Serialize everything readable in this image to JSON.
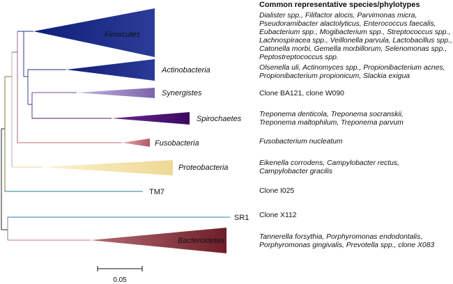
{
  "header": {
    "title": "Common representative species/phylotypes"
  },
  "clades": [
    {
      "name": "Firmicutes",
      "color": "#1f2d8c",
      "label_style": "italic",
      "species": [
        "Dialister spp., Filifactor alocis, Parvimonas micra,",
        "Pseudoramibacter alactolyticus, Enterococcus faecalis,",
        "Eubacterium spp., Mogibacterium spp., Streptococcus spp.,",
        "Lachnospiracea spp., Veillonella parvula, Lactobacillus spp.,",
        "Catonella morbi, Gemella morbillorum, Selenomonas spp.,",
        "Peptostreptococcus spp."
      ],
      "species_italic": true
    },
    {
      "name": "Actinobacteria",
      "color": "#1f2d8c",
      "label_style": "italic",
      "species": [
        "Olsenella uli, Actinomyces spp., Propionibacterium acnes,",
        "Propionibacterium propionicum, Slackia exigua"
      ],
      "species_italic": true
    },
    {
      "name": "Synergistes",
      "color": "#8f78b8",
      "label_style": "italic",
      "species": [
        "Clone BA121, clone W090"
      ],
      "species_italic": false
    },
    {
      "name": "Spirochaetes",
      "color": "#4a0f70",
      "label_style": "italic",
      "species": [
        "Treponema denticola, Treponema socranskii,",
        "Treponema maltophilum, Treponema parvum"
      ],
      "species_italic": true
    },
    {
      "name": "Fusobacteria",
      "color": "#c06c78",
      "label_style": "italic",
      "species": [
        "Fusobacterium nucleatum"
      ],
      "species_italic": true
    },
    {
      "name": "Proteobacteria",
      "color": "#f3e2a6",
      "label_style": "italic",
      "species": [
        "Eikenella corrodens, Campylobacter rectus,",
        "Campylobacter gracilis"
      ],
      "species_italic": true
    },
    {
      "name": "TM7",
      "color": "#2e7a8a",
      "label_style": "normal",
      "species": [
        "Clone I025"
      ],
      "species_italic": false
    },
    {
      "name": "SR1",
      "color": "#2b7bb0",
      "label_style": "normal",
      "species": [
        "Clone X112"
      ],
      "species_italic": false
    },
    {
      "name": "Bacteroidetes",
      "color": "#7a2530",
      "label_style": "italic",
      "species": [
        "Tannerella forsythia, Porphyromonas endodontalis,",
        "Porphyromonas gingivalis, Prevotella spp., clone X083"
      ],
      "species_italic": true
    }
  ],
  "scale_bar": {
    "label": "0.05"
  }
}
